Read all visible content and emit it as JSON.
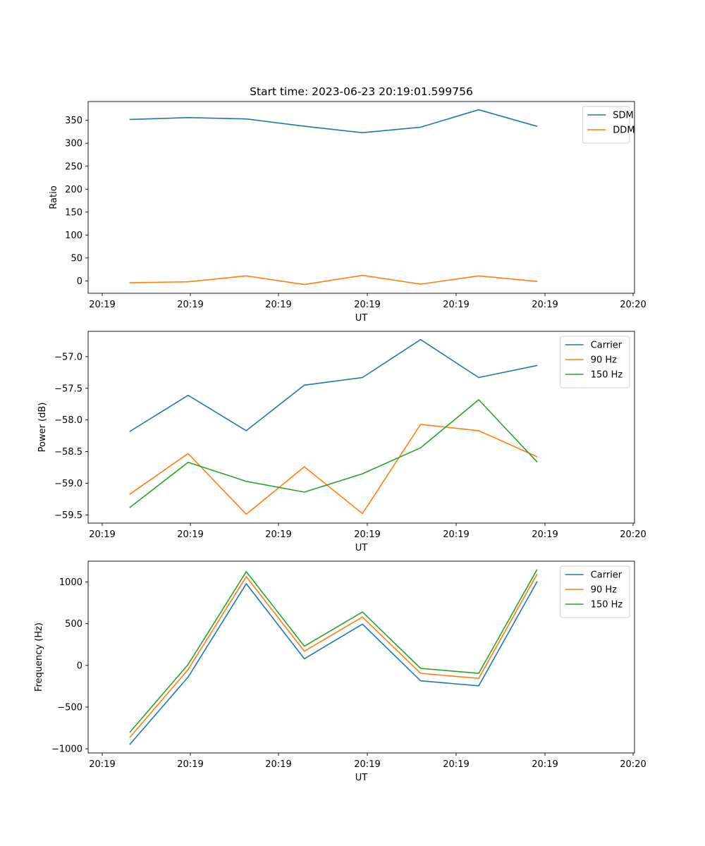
{
  "figure_title": "Start time: 2023-06-23 20:19:01.599756",
  "colors": {
    "blue": "#1f77b4",
    "orange": "#ff7f0e",
    "green": "#2ca02c"
  },
  "chart_data": [
    {
      "type": "line",
      "title": "Start time: 2023-06-23 20:19:01.599756",
      "xlabel": "UT",
      "ylabel": "Ratio",
      "x_tick_labels": [
        "20:19",
        "20:19",
        "20:19",
        "20:19",
        "20:19",
        "20:19",
        "20:20"
      ],
      "y_ticks": [
        0,
        50,
        100,
        150,
        200,
        250,
        300,
        350
      ],
      "y_tick_labels": [
        "0",
        "50",
        "100",
        "150",
        "200",
        "250",
        "300",
        "350"
      ],
      "xlim": [
        0,
        9.4
      ],
      "ylim": [
        -27,
        391
      ],
      "x": [
        0.72,
        1.72,
        2.72,
        3.72,
        4.72,
        5.72,
        6.72,
        7.72
      ],
      "legend_position": "top-right",
      "grid": false,
      "series": [
        {
          "name": "SDM",
          "color": "#1f77b4",
          "values": [
            352,
            356,
            353,
            337,
            323,
            335,
            373,
            337
          ]
        },
        {
          "name": "DDM",
          "color": "#ff7f0e",
          "values": [
            -4,
            -2,
            11,
            -8,
            12,
            -7,
            11,
            -1
          ]
        }
      ]
    },
    {
      "type": "line",
      "title": "",
      "xlabel": "UT",
      "ylabel": "Power (dB)",
      "x_tick_labels": [
        "20:19",
        "20:19",
        "20:19",
        "20:19",
        "20:19",
        "20:19",
        "20:20"
      ],
      "y_ticks": [
        -59.5,
        -59.0,
        -58.5,
        -58.0,
        -57.5,
        -57.0
      ],
      "y_tick_labels": [
        "−59.5",
        "−59.0",
        "−58.5",
        "−58.0",
        "−57.5",
        "−57.0"
      ],
      "xlim": [
        0,
        9.4
      ],
      "ylim": [
        -59.63,
        -56.6
      ],
      "x": [
        0.72,
        1.72,
        2.72,
        3.72,
        4.72,
        5.72,
        6.72,
        7.72
      ],
      "legend_position": "top-right",
      "grid": false,
      "series": [
        {
          "name": "Carrier",
          "color": "#1f77b4",
          "values": [
            -58.18,
            -57.61,
            -58.17,
            -57.45,
            -57.33,
            -56.73,
            -57.33,
            -57.14
          ]
        },
        {
          "name": "90 Hz",
          "color": "#ff7f0e",
          "values": [
            -59.17,
            -58.53,
            -59.49,
            -58.74,
            -59.48,
            -58.07,
            -58.17,
            -58.58
          ]
        },
        {
          "name": "150 Hz",
          "color": "#2ca02c",
          "values": [
            -59.38,
            -58.67,
            -58.97,
            -59.14,
            -58.85,
            -58.44,
            -57.68,
            -58.66
          ]
        }
      ]
    },
    {
      "type": "line",
      "title": "",
      "xlabel": "UT",
      "ylabel": "Frequency (Hz)",
      "x_tick_labels": [
        "20:19",
        "20:19",
        "20:19",
        "20:19",
        "20:19",
        "20:19",
        "20:20"
      ],
      "y_ticks": [
        -1000,
        -500,
        0,
        500,
        1000
      ],
      "y_tick_labels": [
        "−1000",
        "−500",
        "0",
        "500",
        "1000"
      ],
      "xlim": [
        0,
        9.4
      ],
      "ylim": [
        -1050,
        1250
      ],
      "x": [
        0.72,
        1.72,
        2.72,
        3.72,
        4.72,
        5.72,
        6.72,
        7.72
      ],
      "legend_position": "top-right",
      "grid": false,
      "series": [
        {
          "name": "Carrier",
          "color": "#1f77b4",
          "values": [
            -945,
            -140,
            980,
            80,
            495,
            -185,
            -245,
            1000
          ]
        },
        {
          "name": "90 Hz",
          "color": "#ff7f0e",
          "values": [
            -860,
            -50,
            1065,
            170,
            580,
            -95,
            -155,
            1090
          ]
        },
        {
          "name": "150 Hz",
          "color": "#2ca02c",
          "values": [
            -800,
            10,
            1125,
            230,
            640,
            -35,
            -95,
            1145
          ]
        }
      ]
    }
  ]
}
